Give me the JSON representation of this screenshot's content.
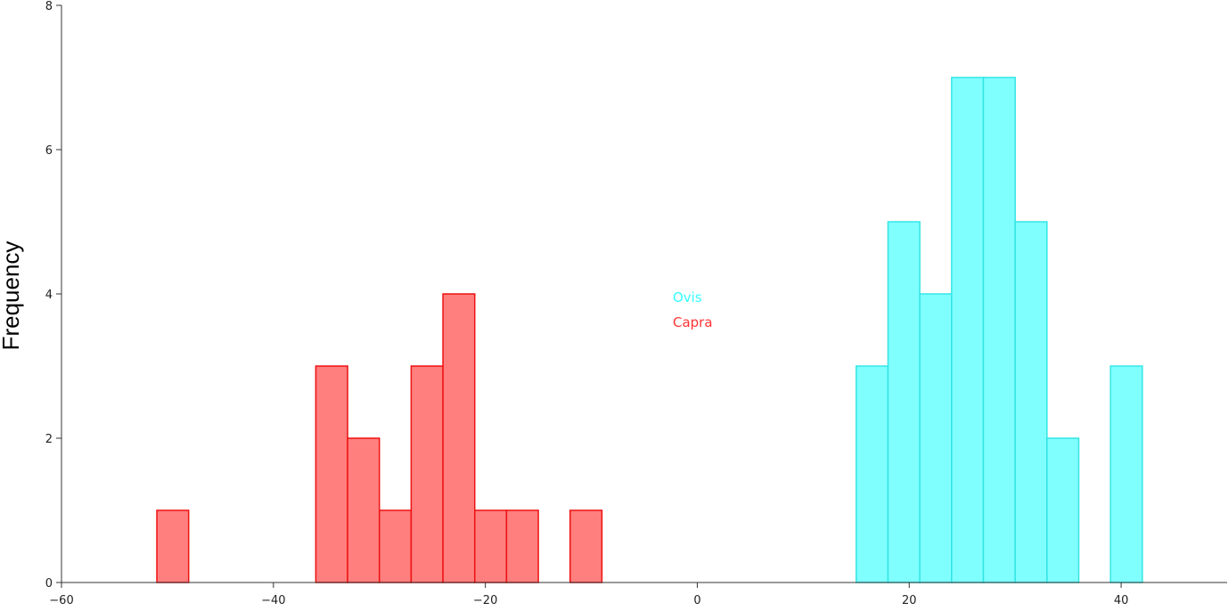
{
  "chart_data": {
    "type": "bar",
    "subtype": "histogram",
    "title": "",
    "xlabel": "",
    "ylabel": "Frequency",
    "xlim": [
      -60,
      50
    ],
    "ylim": [
      0,
      8
    ],
    "x_ticks": [
      -60,
      -40,
      -20,
      0,
      20,
      40
    ],
    "x_tick_labels": [
      "−60",
      "−40",
      "−20",
      "0",
      "20",
      "40"
    ],
    "y_ticks": [
      0,
      2,
      4,
      6,
      8
    ],
    "y_tick_labels": [
      "0",
      "2",
      "4",
      "6",
      "8"
    ],
    "bin_width": 3,
    "grid": false,
    "legend_position": "center",
    "series": [
      {
        "name": "Ovis",
        "fill": "#80FFFF",
        "stroke": "#33E5E5",
        "text_color": "#33FFFF",
        "bins": [
          {
            "start": 15,
            "end": 18,
            "count": 3
          },
          {
            "start": 18,
            "end": 21,
            "count": 5
          },
          {
            "start": 21,
            "end": 24,
            "count": 4
          },
          {
            "start": 24,
            "end": 27,
            "count": 7
          },
          {
            "start": 27,
            "end": 30,
            "count": 7
          },
          {
            "start": 30,
            "end": 33,
            "count": 5
          },
          {
            "start": 33,
            "end": 36,
            "count": 2
          },
          {
            "start": 39,
            "end": 42,
            "count": 3
          }
        ]
      },
      {
        "name": "Capra",
        "fill": "#FF7F7F",
        "stroke": "#EE1111",
        "text_color": "#FF3333",
        "bins": [
          {
            "start": -51,
            "end": -48,
            "count": 1
          },
          {
            "start": -36,
            "end": -33,
            "count": 3
          },
          {
            "start": -33,
            "end": -30,
            "count": 2
          },
          {
            "start": -30,
            "end": -27,
            "count": 1
          },
          {
            "start": -27,
            "end": -24,
            "count": 3
          },
          {
            "start": -24,
            "end": -21,
            "count": 4
          },
          {
            "start": -21,
            "end": -18,
            "count": 1
          },
          {
            "start": -18,
            "end": -15,
            "count": 1
          },
          {
            "start": -12,
            "end": -9,
            "count": 1
          }
        ]
      }
    ]
  }
}
